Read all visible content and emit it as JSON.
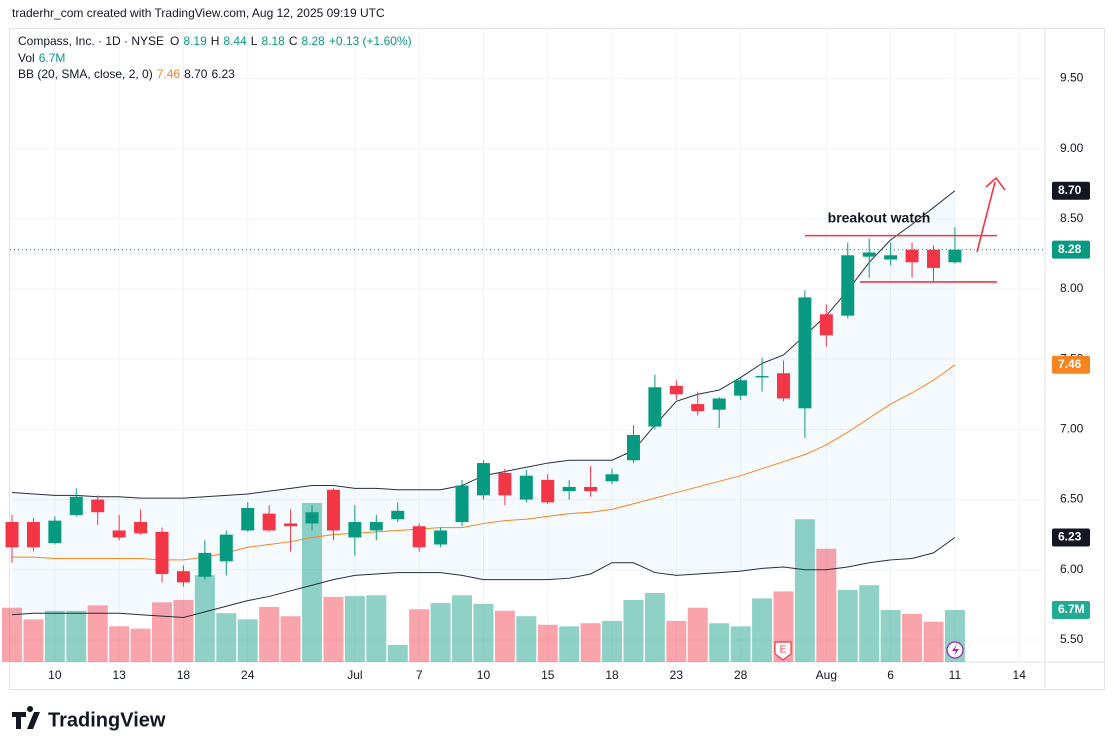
{
  "attribution": "traderhr_com created with TradingView.com, Aug 12, 2025 09:19 UTC",
  "footer": {
    "brand": "TradingView"
  },
  "chart_data": {
    "type": "candlestick",
    "legend": {
      "line1": [
        {
          "text": "Compass, Inc. · 1D · NYSE",
          "color": "#131722"
        },
        {
          "text": "O",
          "color": "#131722"
        },
        {
          "text": 8.19,
          "color": "#089981"
        },
        {
          "text": "H",
          "color": "#131722"
        },
        {
          "text": 8.44,
          "color": "#089981"
        },
        {
          "text": "L",
          "color": "#131722"
        },
        {
          "text": 8.18,
          "color": "#089981"
        },
        {
          "text": "C",
          "color": "#131722"
        },
        {
          "text": 8.28,
          "color": "#089981"
        },
        {
          "text": "+0.13 (+1.60%)",
          "color": "#089981"
        }
      ],
      "line2": [
        {
          "text": "Vol",
          "color": "#131722"
        },
        {
          "text": "6.7M",
          "color": "#089981"
        }
      ],
      "line3": [
        {
          "text": "BB (20, SMA, close, 2, 0)",
          "color": "#131722"
        },
        {
          "text": "7.46",
          "color": "#f7841e"
        },
        {
          "text": "8.70",
          "color": "#131722"
        },
        {
          "text": "6.23",
          "color": "#131722"
        }
      ]
    },
    "categories": [
      null,
      null,
      "10",
      null,
      null,
      "13",
      null,
      null,
      "18",
      null,
      null,
      "24",
      null,
      null,
      null,
      null,
      "Jul",
      null,
      null,
      "7",
      null,
      null,
      "10",
      null,
      null,
      "15",
      null,
      null,
      "18",
      null,
      null,
      "23",
      null,
      null,
      "28",
      null,
      null,
      null,
      "Aug",
      null,
      null,
      "6",
      null,
      null,
      "11",
      null,
      null,
      "14"
    ],
    "open": [
      6.34,
      6.34,
      6.19,
      6.39,
      6.5,
      6.28,
      6.34,
      6.27,
      5.99,
      5.95,
      6.06,
      6.28,
      6.4,
      6.33,
      6.33,
      6.57,
      6.23,
      6.28,
      6.36,
      6.31,
      6.18,
      6.34,
      6.53,
      6.69,
      6.5,
      6.64,
      6.56,
      6.59,
      6.63,
      6.78,
      7.02,
      7.31,
      7.18,
      7.14,
      7.24,
      7.37,
      7.4,
      7.15,
      7.82,
      7.81,
      8.23,
      8.21,
      8.28,
      8.28,
      8.19,
      null,
      null,
      null
    ],
    "high": [
      6.39,
      6.37,
      6.38,
      6.58,
      6.53,
      6.39,
      6.43,
      6.3,
      6.03,
      6.21,
      6.28,
      6.48,
      6.46,
      6.43,
      6.46,
      6.58,
      6.46,
      6.39,
      6.48,
      6.33,
      6.3,
      6.64,
      6.78,
      6.72,
      6.71,
      6.68,
      6.64,
      6.74,
      6.72,
      7.03,
      7.39,
      7.35,
      7.27,
      7.23,
      7.37,
      7.51,
      7.49,
      7.99,
      7.89,
      8.33,
      8.36,
      8.33,
      8.33,
      8.31,
      8.44,
      null,
      null,
      null
    ],
    "low": [
      6.05,
      6.13,
      6.18,
      6.38,
      6.32,
      6.21,
      6.25,
      5.91,
      5.88,
      5.93,
      5.96,
      6.27,
      6.27,
      6.13,
      6.28,
      6.21,
      6.1,
      6.21,
      6.34,
      6.13,
      6.16,
      6.31,
      6.5,
      6.46,
      6.48,
      6.47,
      6.5,
      6.52,
      6.61,
      6.76,
      7.0,
      7.21,
      7.1,
      7.01,
      7.21,
      7.27,
      7.2,
      6.94,
      7.59,
      7.79,
      8.08,
      8.17,
      8.08,
      8.05,
      8.18,
      null,
      null,
      null
    ],
    "close": [
      6.16,
      6.16,
      6.35,
      6.52,
      6.41,
      6.23,
      6.26,
      5.97,
      5.91,
      6.12,
      6.25,
      6.44,
      6.28,
      6.31,
      6.41,
      6.28,
      6.34,
      6.34,
      6.42,
      6.16,
      6.28,
      6.6,
      6.76,
      6.53,
      6.67,
      6.48,
      6.59,
      6.56,
      6.68,
      6.96,
      7.3,
      7.25,
      7.13,
      7.22,
      7.35,
      7.38,
      7.22,
      7.94,
      7.67,
      8.24,
      8.26,
      8.24,
      8.19,
      8.15,
      8.28,
      null,
      null,
      null
    ],
    "volume": [
      7000000,
      5500000,
      6600000,
      6600000,
      7300000,
      4600000,
      4300000,
      7700000,
      8000000,
      11200000,
      6300000,
      5500000,
      7100000,
      5900000,
      20500000,
      8400000,
      8500000,
      8600000,
      2200000,
      6800000,
      7600000,
      8600000,
      7500000,
      6600000,
      5900000,
      4800000,
      4600000,
      5000000,
      5300000,
      8000000,
      8900000,
      5300000,
      7000000,
      5000000,
      4600000,
      8200000,
      9100000,
      18400000,
      14600000,
      9300000,
      9900000,
      6700000,
      6200000,
      5200000,
      6700000,
      null,
      null,
      null
    ],
    "bb_upper": [
      6.55,
      6.54,
      6.53,
      6.53,
      6.52,
      6.52,
      6.51,
      6.51,
      6.51,
      6.52,
      6.53,
      6.54,
      6.56,
      6.58,
      6.6,
      6.6,
      6.58,
      6.58,
      6.57,
      6.57,
      6.57,
      6.6,
      6.67,
      6.7,
      6.73,
      6.76,
      6.78,
      6.78,
      6.78,
      6.85,
      7.03,
      7.2,
      7.25,
      7.28,
      7.37,
      7.47,
      7.53,
      7.67,
      7.81,
      7.99,
      8.19,
      8.35,
      8.46,
      8.58,
      8.7,
      null,
      null,
      null
    ],
    "bb_basis": [
      6.09,
      6.09,
      6.08,
      6.08,
      6.08,
      6.08,
      6.08,
      6.07,
      6.07,
      6.09,
      6.12,
      6.16,
      6.18,
      6.2,
      6.23,
      6.25,
      6.26,
      6.27,
      6.28,
      6.29,
      6.3,
      6.3,
      6.33,
      6.35,
      6.36,
      6.38,
      6.4,
      6.41,
      6.43,
      6.47,
      6.51,
      6.55,
      6.59,
      6.63,
      6.67,
      6.72,
      6.77,
      6.82,
      6.89,
      6.98,
      7.08,
      7.18,
      7.26,
      7.35,
      7.46,
      null,
      null,
      null
    ],
    "bb_lower": [
      5.68,
      5.69,
      5.69,
      5.69,
      5.69,
      5.69,
      5.68,
      5.67,
      5.66,
      5.7,
      5.74,
      5.78,
      5.81,
      5.85,
      5.89,
      5.93,
      5.96,
      5.97,
      5.98,
      5.98,
      5.98,
      5.96,
      5.93,
      5.93,
      5.93,
      5.93,
      5.94,
      5.97,
      6.05,
      6.05,
      5.98,
      5.96,
      5.97,
      5.98,
      5.99,
      6.01,
      6.02,
      6.0,
      6.0,
      6.02,
      6.05,
      6.07,
      6.08,
      6.12,
      6.23,
      null,
      null,
      null
    ],
    "up_color": "#089981",
    "down_color": "#f23645",
    "vol_up_color": "rgba(8,153,129,0.45)",
    "vol_down_color": "rgba(242,54,69,0.45)",
    "band_color": "#2a2e39",
    "basis_color": "#f7841e",
    "ylim": [
      5.343,
      9.859
    ],
    "yticks": [
      {
        "value": 5.5,
        "label": "5.50"
      },
      {
        "value": 6,
        "label": "6.00"
      },
      {
        "value": 6.5,
        "label": "6.50"
      },
      {
        "value": 7,
        "label": "7.00"
      },
      {
        "value": 7.5,
        "label": "7.50"
      },
      {
        "value": 8,
        "label": "8.00"
      },
      {
        "value": 8.5,
        "label": "8.50"
      },
      {
        "value": 9,
        "label": "9.00"
      },
      {
        "value": 9.5,
        "label": "9.50"
      }
    ],
    "grid": true,
    "annotation": "breakout watch",
    "levels": [
      8.38,
      8.05
    ],
    "earnings_marker": "E"
  }
}
